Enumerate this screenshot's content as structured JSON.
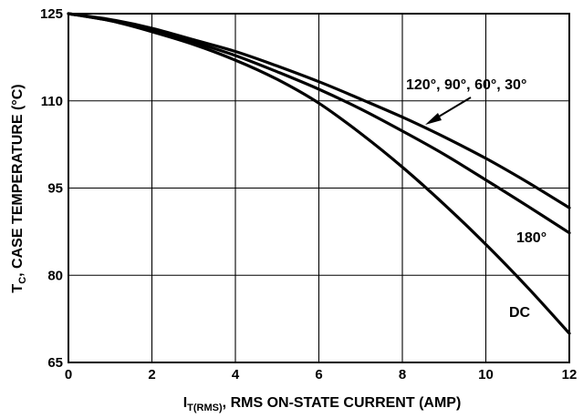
{
  "chart_data": {
    "type": "line",
    "xlabel_main": "I",
    "xlabel_sub": "T(RMS)",
    "xlabel_rest": ", RMS ON-STATE CURRENT (AMP)",
    "ylabel_main": "T",
    "ylabel_sub": "C",
    "ylabel_rest": ", CASE TEMPERATURE (°C)",
    "xlim": [
      0,
      12
    ],
    "ylim": [
      65,
      125
    ],
    "xticks": [
      "0",
      "2",
      "4",
      "6",
      "8",
      "10",
      "12"
    ],
    "yticks": [
      "125",
      "110",
      "95",
      "80",
      "65"
    ],
    "grid": true,
    "series": [
      {
        "name": "120°, 90°, 60°, 30°",
        "x": [
          0,
          1,
          2,
          3,
          4,
          5,
          6,
          7,
          8,
          9,
          10,
          11,
          12
        ],
        "y": [
          125,
          124,
          122.5,
          120.5,
          118.5,
          116,
          113.3,
          110.3,
          107.2,
          103.8,
          100.1,
          96,
          91.6
        ]
      },
      {
        "name": "180°",
        "x": [
          0,
          1,
          2,
          3,
          4,
          5,
          6,
          7,
          8,
          9,
          10,
          11,
          12
        ],
        "y": [
          125,
          123.8,
          122.2,
          120.1,
          117.8,
          115,
          112,
          108.6,
          104.8,
          100.8,
          96.4,
          91.9,
          87.3
        ]
      },
      {
        "name": "DC",
        "x": [
          0,
          1,
          2,
          3,
          4,
          5,
          6,
          7,
          8,
          9,
          10,
          11,
          12
        ],
        "y": [
          125,
          123.8,
          121.9,
          119.7,
          117,
          113.7,
          109.6,
          104.4,
          98.6,
          92.2,
          85.3,
          77.9,
          70
        ]
      }
    ],
    "annotations": {
      "group_label": "120°, 90°, 60°, 30°",
      "label_180": "180°",
      "label_dc": "DC"
    }
  }
}
